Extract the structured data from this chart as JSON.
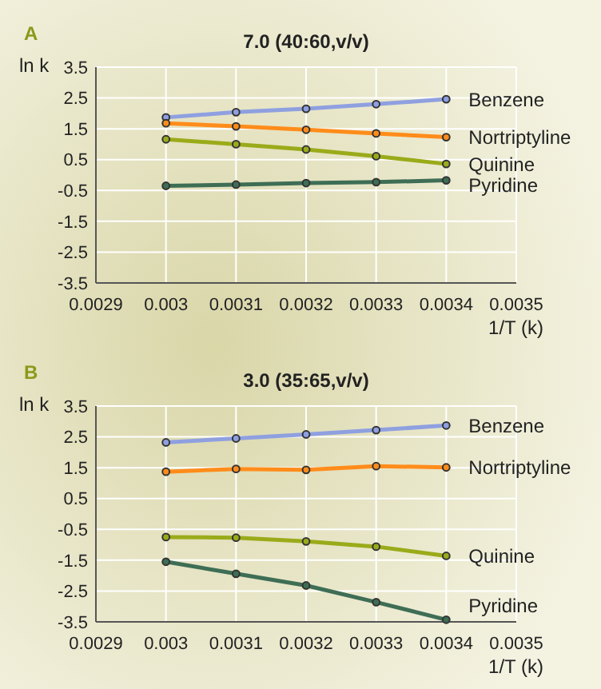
{
  "chart_data": [
    {
      "type": "line",
      "title": "7.0 (40:60,v/v)",
      "xlabel": "1/T (k)",
      "ylabel": "ln k",
      "annotations": [
        "A"
      ],
      "xlim": [
        0.0029,
        0.0035
      ],
      "xticks": [
        0.0029,
        0.003,
        0.0031,
        0.0032,
        0.0033,
        0.0034,
        0.0035
      ],
      "ylim": [
        -3.5,
        3.5
      ],
      "yticks": [
        -3.5,
        -2.5,
        -1.5,
        -0.5,
        0.5,
        1.5,
        2.5,
        3.5
      ],
      "grid": true,
      "marker": "circle",
      "x": [
        0.003,
        0.0031,
        0.0032,
        0.0033,
        0.0034
      ],
      "series": [
        {
          "name": "Benzene",
          "color": "#8fa0e0",
          "values": [
            1.87,
            2.04,
            2.15,
            2.3,
            2.46
          ]
        },
        {
          "name": "Nortriptyline",
          "color": "#ff8c1a",
          "values": [
            1.68,
            1.58,
            1.47,
            1.35,
            1.23
          ]
        },
        {
          "name": "Quinine",
          "color": "#9aab1a",
          "values": [
            1.16,
            1.0,
            0.83,
            0.61,
            0.36
          ]
        },
        {
          "name": "Pyridine",
          "color": "#3e6e55",
          "values": [
            -0.35,
            -0.31,
            -0.26,
            -0.23,
            -0.17
          ]
        }
      ]
    },
    {
      "type": "line",
      "title": "3.0 (35:65,v/v)",
      "xlabel": "1/T (k)",
      "ylabel": "ln k",
      "annotations": [
        "B"
      ],
      "xlim": [
        0.0029,
        0.0035
      ],
      "xticks": [
        0.0029,
        0.003,
        0.0031,
        0.0032,
        0.0033,
        0.0034,
        0.0035
      ],
      "ylim": [
        -3.5,
        3.5
      ],
      "yticks": [
        -3.5,
        -2.5,
        -1.5,
        -0.5,
        0.5,
        1.5,
        2.5,
        3.5
      ],
      "grid": true,
      "marker": "circle",
      "x": [
        0.003,
        0.0031,
        0.0032,
        0.0033,
        0.0034
      ],
      "series": [
        {
          "name": "Benzene",
          "color": "#8fa0e0",
          "values": [
            2.32,
            2.45,
            2.58,
            2.72,
            2.87
          ]
        },
        {
          "name": "Nortriptyline",
          "color": "#ff8c1a",
          "values": [
            1.37,
            1.46,
            1.43,
            1.55,
            1.51
          ]
        },
        {
          "name": "Quinine",
          "color": "#9aab1a",
          "values": [
            -0.75,
            -0.77,
            -0.89,
            -1.06,
            -1.36
          ]
        },
        {
          "name": "Pyridine",
          "color": "#3e6e55",
          "values": [
            -1.55,
            -1.94,
            -2.32,
            -2.86,
            -3.43
          ]
        }
      ]
    }
  ]
}
